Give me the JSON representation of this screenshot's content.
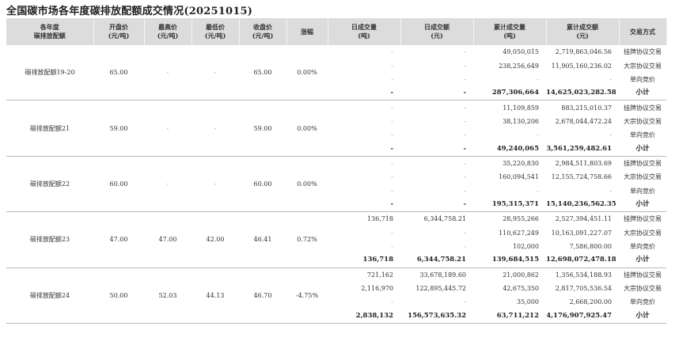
{
  "title": "全国碳市场各年度碳排放配额成交情况(20251015)",
  "headers": [
    [
      "各年度",
      "碳排放配额"
    ],
    [
      "开盘价",
      "(元/吨)"
    ],
    [
      "最高价",
      "(元/吨)"
    ],
    [
      "最低价",
      "(元/吨)"
    ],
    [
      "收盘价",
      "(元/吨)"
    ],
    [
      "涨幅"
    ],
    [
      "日成交量",
      "(吨)"
    ],
    [
      "日成交额",
      "(元)"
    ],
    [
      "累计成交量",
      "(吨)"
    ],
    [
      "累计成交额",
      "(元)"
    ],
    [
      "交易方式"
    ]
  ],
  "groups": [
    {
      "name": "碳排放配额19-20",
      "open": "65.00",
      "high": "-",
      "low": "-",
      "close": "65.00",
      "change": "0.00%",
      "rows": [
        {
          "vol": "-",
          "amt": "-",
          "cum_vol": "49,050,015",
          "cum_amt": "2,719,863,046.56",
          "method": "挂牌协议交易"
        },
        {
          "vol": "-",
          "amt": "-",
          "cum_vol": "238,256,649",
          "cum_amt": "11,905,160,236.02",
          "method": "大宗协议交易"
        },
        {
          "vol": "-",
          "amt": "-",
          "cum_vol": "-",
          "cum_amt": "-",
          "method": "单向竞价"
        },
        {
          "vol": "-",
          "amt": "-",
          "cum_vol": "287,306,664",
          "cum_amt": "14,625,023,282.58",
          "method": "小计"
        }
      ]
    },
    {
      "name": "碳排放配额21",
      "open": "59.00",
      "high": "-",
      "low": "-",
      "close": "59.00",
      "change": "0.00%",
      "rows": [
        {
          "vol": "-",
          "amt": "-",
          "cum_vol": "11,109,859",
          "cum_amt": "883,215,010.37",
          "method": "挂牌协议交易"
        },
        {
          "vol": "-",
          "amt": "-",
          "cum_vol": "38,130,206",
          "cum_amt": "2,678,044,472.24",
          "method": "大宗协议交易"
        },
        {
          "vol": "-",
          "amt": "-",
          "cum_vol": "-",
          "cum_amt": "-",
          "method": "单向竞价"
        },
        {
          "vol": "-",
          "amt": "-",
          "cum_vol": "49,240,065",
          "cum_amt": "3,561,259,482.61",
          "method": "小计"
        }
      ]
    },
    {
      "name": "碳排放配额22",
      "open": "60.00",
      "high": "-",
      "low": "-",
      "close": "60.00",
      "change": "0.00%",
      "rows": [
        {
          "vol": "-",
          "amt": "-",
          "cum_vol": "35,220,830",
          "cum_amt": "2,984,511,803.69",
          "method": "挂牌协议交易"
        },
        {
          "vol": "-",
          "amt": "-",
          "cum_vol": "160,094,541",
          "cum_amt": "12,155,724,758.66",
          "method": "大宗协议交易"
        },
        {
          "vol": "-",
          "amt": "-",
          "cum_vol": "-",
          "cum_amt": "-",
          "method": "单向竞价"
        },
        {
          "vol": "-",
          "amt": "-",
          "cum_vol": "195,315,371",
          "cum_amt": "15,140,236,562.35",
          "method": "小计"
        }
      ]
    },
    {
      "name": "碳排放配额23",
      "open": "47.00",
      "high": "47.00",
      "low": "42.00",
      "close": "46.41",
      "change": "0.72%",
      "rows": [
        {
          "vol": "136,718",
          "amt": "6,344,758.21",
          "cum_vol": "28,955,266",
          "cum_amt": "2,527,394,451.11",
          "method": "挂牌协议交易"
        },
        {
          "vol": "-",
          "amt": "-",
          "cum_vol": "110,627,249",
          "cum_amt": "10,163,091,227.07",
          "method": "大宗协议交易"
        },
        {
          "vol": "-",
          "amt": "-",
          "cum_vol": "102,000",
          "cum_amt": "7,586,800.00",
          "method": "单向竞价"
        },
        {
          "vol": "136,718",
          "amt": "6,344,758.21",
          "cum_vol": "139,684,515",
          "cum_amt": "12,698,072,478.18",
          "method": "小计"
        }
      ]
    },
    {
      "name": "碳排放配额24",
      "open": "50.00",
      "high": "52.03",
      "low": "44.13",
      "close": "46.70",
      "change": "-4.75%",
      "rows": [
        {
          "vol": "721,162",
          "amt": "33,678,189.60",
          "cum_vol": "21,000,862",
          "cum_amt": "1,356,534,188.93",
          "method": "挂牌协议交易"
        },
        {
          "vol": "2,116,970",
          "amt": "122,895,445.72",
          "cum_vol": "42,675,350",
          "cum_amt": "2,817,705,536.54",
          "method": "大宗协议交易"
        },
        {
          "vol": "-",
          "amt": "-",
          "cum_vol": "35,000",
          "cum_amt": "2,668,200.00",
          "method": "单向竞价"
        },
        {
          "vol": "2,838,132",
          "amt": "156,573,635.32",
          "cum_vol": "63,711,212",
          "cum_amt": "4,176,907,925.47",
          "method": "小计"
        }
      ]
    }
  ]
}
